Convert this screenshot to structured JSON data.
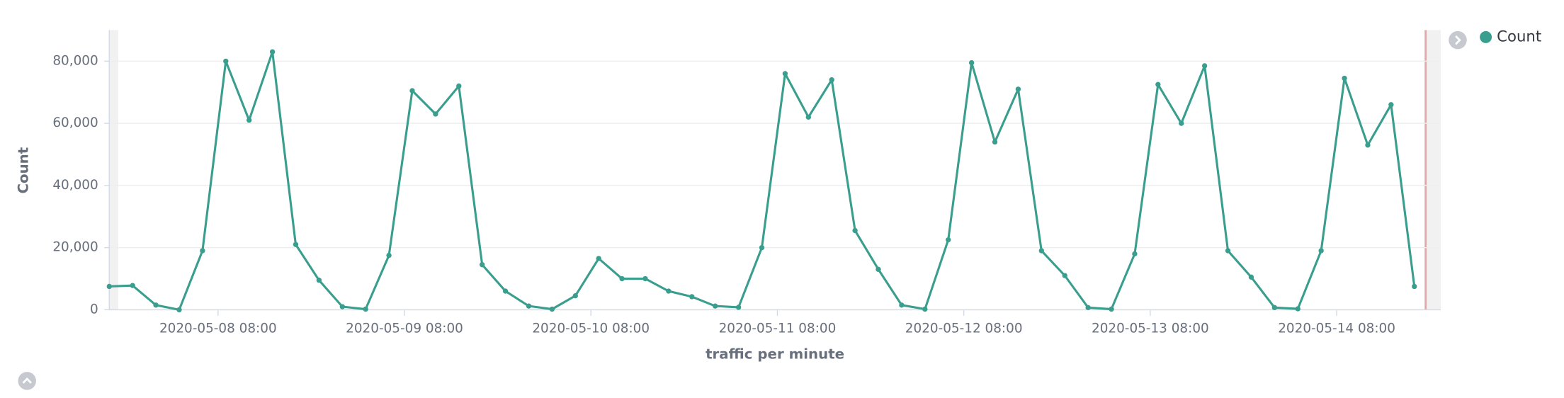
{
  "chart_data": {
    "type": "line",
    "x_label": "traffic per minute",
    "y_label": "Count",
    "x": [
      "2020-05-07 18:00",
      "2020-05-07 21:00",
      "2020-05-08 00:00",
      "2020-05-08 03:00",
      "2020-05-08 06:00",
      "2020-05-08 09:00",
      "2020-05-08 12:00",
      "2020-05-08 15:00",
      "2020-05-08 18:00",
      "2020-05-08 21:00",
      "2020-05-09 00:00",
      "2020-05-09 03:00",
      "2020-05-09 06:00",
      "2020-05-09 09:00",
      "2020-05-09 12:00",
      "2020-05-09 15:00",
      "2020-05-09 18:00",
      "2020-05-09 21:00",
      "2020-05-10 00:00",
      "2020-05-10 03:00",
      "2020-05-10 06:00",
      "2020-05-10 09:00",
      "2020-05-10 12:00",
      "2020-05-10 15:00",
      "2020-05-10 18:00",
      "2020-05-10 21:00",
      "2020-05-11 00:00",
      "2020-05-11 03:00",
      "2020-05-11 06:00",
      "2020-05-11 09:00",
      "2020-05-11 12:00",
      "2020-05-11 15:00",
      "2020-05-11 18:00",
      "2020-05-11 21:00",
      "2020-05-12 00:00",
      "2020-05-12 03:00",
      "2020-05-12 06:00",
      "2020-05-12 09:00",
      "2020-05-12 12:00",
      "2020-05-12 15:00",
      "2020-05-12 18:00",
      "2020-05-12 21:00",
      "2020-05-13 00:00",
      "2020-05-13 03:00",
      "2020-05-13 06:00",
      "2020-05-13 09:00",
      "2020-05-13 12:00",
      "2020-05-13 15:00",
      "2020-05-13 18:00",
      "2020-05-13 21:00",
      "2020-05-14 00:00",
      "2020-05-14 03:00",
      "2020-05-14 06:00",
      "2020-05-14 09:00",
      "2020-05-14 12:00",
      "2020-05-14 15:00",
      "2020-05-14 18:00"
    ],
    "series": [
      {
        "name": "Count",
        "color": "#3a9e8e",
        "values": [
          7500,
          7800,
          1500,
          0,
          19000,
          80000,
          61000,
          83000,
          21000,
          9500,
          1000,
          200,
          17500,
          70500,
          63000,
          72000,
          14500,
          6000,
          1200,
          200,
          4500,
          16500,
          10000,
          10000,
          6000,
          4200,
          1200,
          800,
          20000,
          76000,
          62000,
          74000,
          25500,
          13000,
          1500,
          200,
          22500,
          79500,
          54000,
          71000,
          19000,
          11000,
          700,
          200,
          18000,
          72500,
          60000,
          78500,
          19000,
          10500,
          700,
          300,
          19000,
          74500,
          53000,
          66000,
          7500
        ]
      }
    ],
    "xlim": [
      "2020-05-07 18:00",
      "2020-05-14 21:00"
    ],
    "xticks": [
      "2020-05-08 08:00",
      "2020-05-09 08:00",
      "2020-05-10 08:00",
      "2020-05-11 08:00",
      "2020-05-12 08:00",
      "2020-05-13 08:00",
      "2020-05-14 08:00"
    ],
    "ylim": [
      0,
      90000
    ],
    "yticks": [
      0,
      {
        "value": 20000,
        "label": "20,000"
      },
      {
        "value": 40000,
        "label": "40,000"
      },
      {
        "value": 60000,
        "label": "60,000"
      },
      {
        "value": 80000,
        "label": "80,000"
      }
    ],
    "grid": true,
    "legend": "right"
  }
}
